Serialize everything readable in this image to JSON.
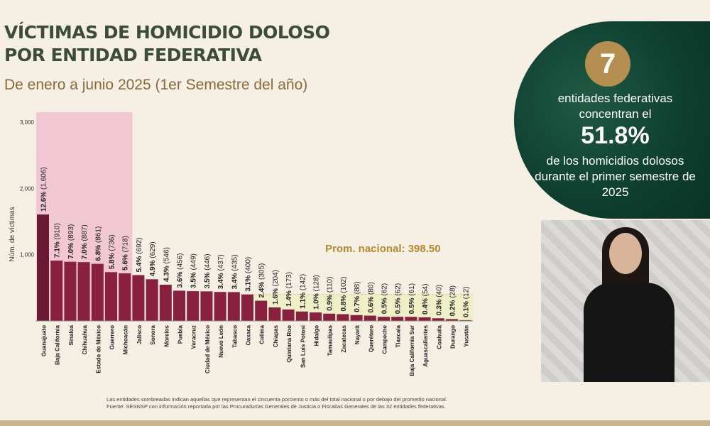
{
  "title_line1": "VÍCTIMAS DE HOMICIDIO DOLOSO",
  "title_line2": "POR ENTIDAD FEDERATIVA",
  "subtitle": "De enero a junio 2025 (1er Semestre del año)",
  "footnote_1": "Las entidades sombreadas indican aquellas que representan el cincuenta porciento o más del total nacional o por debajo del promedio nacional.",
  "footnote_2": "Fuente: SESNSP con información reportada por las Procuradurías Generales de Justicia o Fiscalías Generales de las 32 entidades federativas.",
  "card": {
    "count": "7",
    "line1": "entidades federativas concentran el",
    "pct": "51.8%",
    "line2": "de los homicidios dolosos durante el primer semestre de 2025"
  },
  "colors": {
    "bar_dark": "#6b1a36",
    "bar": "#8a2040",
    "highlight_pink": "#f0c7d2",
    "highlight_yellow": "#f0f0c8",
    "avg_text": "#b58a2e",
    "title": "#3c4c36",
    "card_green": "#0e3f2f",
    "badge_gold": "#b58f4f"
  },
  "chart_data": {
    "type": "bar",
    "ylabel": "Núm. de víctimas",
    "ylim": [
      0,
      3000
    ],
    "yticks": [
      "1,000",
      "2,000",
      "3,000"
    ],
    "avg_label": "Prom. nacional: 398.50",
    "avg_value": 398.5,
    "highlight_top_count": 7,
    "categories": [
      "Guanajuato",
      "Baja California",
      "Sinaloa",
      "Chihuahua",
      "Estado de México",
      "Guerrero",
      "Michoacán",
      "Jalisco",
      "Sonora",
      "Morelos",
      "Puebla",
      "Veracruz",
      "Ciudad de México",
      "Nuevo León",
      "Tabasco",
      "Oaxaca",
      "Colima",
      "Chiapas",
      "Quintana Roo",
      "San Luis Potosí",
      "Hidalgo",
      "Tamaulipas",
      "Zacatecas",
      "Nayarit",
      "Querétaro",
      "Campeche",
      "Tlaxcala",
      "Baja California Sur",
      "Aguascalientes",
      "Coahuila",
      "Durango",
      "Yucatán"
    ],
    "values": [
      1606,
      910,
      893,
      887,
      861,
      736,
      718,
      692,
      629,
      546,
      456,
      449,
      446,
      437,
      435,
      400,
      305,
      204,
      173,
      142,
      128,
      110,
      102,
      88,
      80,
      62,
      62,
      61,
      54,
      40,
      28,
      12
    ],
    "pct_labels": [
      "12.6%",
      "7.1%",
      "7.0%",
      "7.0%",
      "6.8%",
      "5.8%",
      "5.6%",
      "5.4%",
      "4.9%",
      "4.3%",
      "3.6%",
      "3.5%",
      "3.5%",
      "3.4%",
      "3.4%",
      "3.1%",
      "2.4%",
      "1.6%",
      "1.4%",
      "1.1%",
      "1.0%",
      "0.9%",
      "0.8%",
      "0.7%",
      "0.6%",
      "0.5%",
      "0.5%",
      "0.5%",
      "0.4%",
      "0.3%",
      "0.2%",
      "0.1%"
    ],
    "count_labels": [
      "(1,606)",
      "(910)",
      "(893)",
      "(887)",
      "(861)",
      "(736)",
      "(718)",
      "(692)",
      "(629)",
      "(546)",
      "(456)",
      "(449)",
      "(446)",
      "(437)",
      "(435)",
      "(400)",
      "(305)",
      "(204)",
      "(173)",
      "(142)",
      "(128)",
      "(110)",
      "(102)",
      "(88)",
      "(80)",
      "(62)",
      "(62)",
      "(61)",
      "(54)",
      "(40)",
      "(28)",
      "(12)"
    ]
  }
}
